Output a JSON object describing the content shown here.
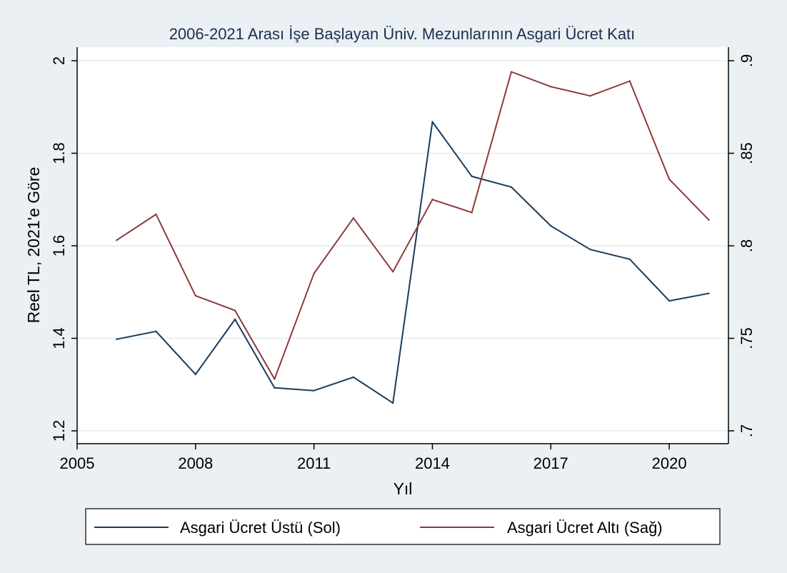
{
  "chart_data": {
    "type": "line",
    "title": "2006-2021 Arası İşe Başlayan Üniv. Mezunlarının Asgari Ücret Katı",
    "xlabel": "Yıl",
    "ylabel": "Reel TL, 2021'e Göre",
    "x": [
      2006,
      2007,
      2008,
      2009,
      2010,
      2011,
      2012,
      2013,
      2014,
      2015,
      2016,
      2017,
      2018,
      2019,
      2020,
      2021
    ],
    "xlim": [
      2005,
      2021.5
    ],
    "xticks": [
      2005,
      2008,
      2011,
      2014,
      2017,
      2020
    ],
    "ylim_left": [
      1.2,
      2.0
    ],
    "yticks_left": [
      "1.2",
      "1.4",
      "1.6",
      "1.8",
      "2"
    ],
    "ylim_right": [
      0.7,
      0.9
    ],
    "yticks_right": [
      ".7",
      ".75",
      ".8",
      ".85",
      ".9"
    ],
    "grid": "horizontal",
    "legend_position": "bottom",
    "series": [
      {
        "name": "Asgari Ücret Üstü (Sol)",
        "axis": "left",
        "color": "#1a3a5c",
        "values": [
          1.398,
          1.415,
          1.322,
          1.441,
          1.293,
          1.287,
          1.316,
          1.26,
          1.868,
          1.75,
          1.727,
          1.643,
          1.592,
          1.571,
          1.481,
          1.497
        ]
      },
      {
        "name": "Asgari Ücret Altı (Sağ)",
        "axis": "right",
        "color": "#8b3a3a",
        "values": [
          0.803,
          0.817,
          0.773,
          0.765,
          0.728,
          0.785,
          0.815,
          0.786,
          0.825,
          0.818,
          0.894,
          0.886,
          0.881,
          0.889,
          0.836,
          0.814
        ]
      }
    ]
  }
}
